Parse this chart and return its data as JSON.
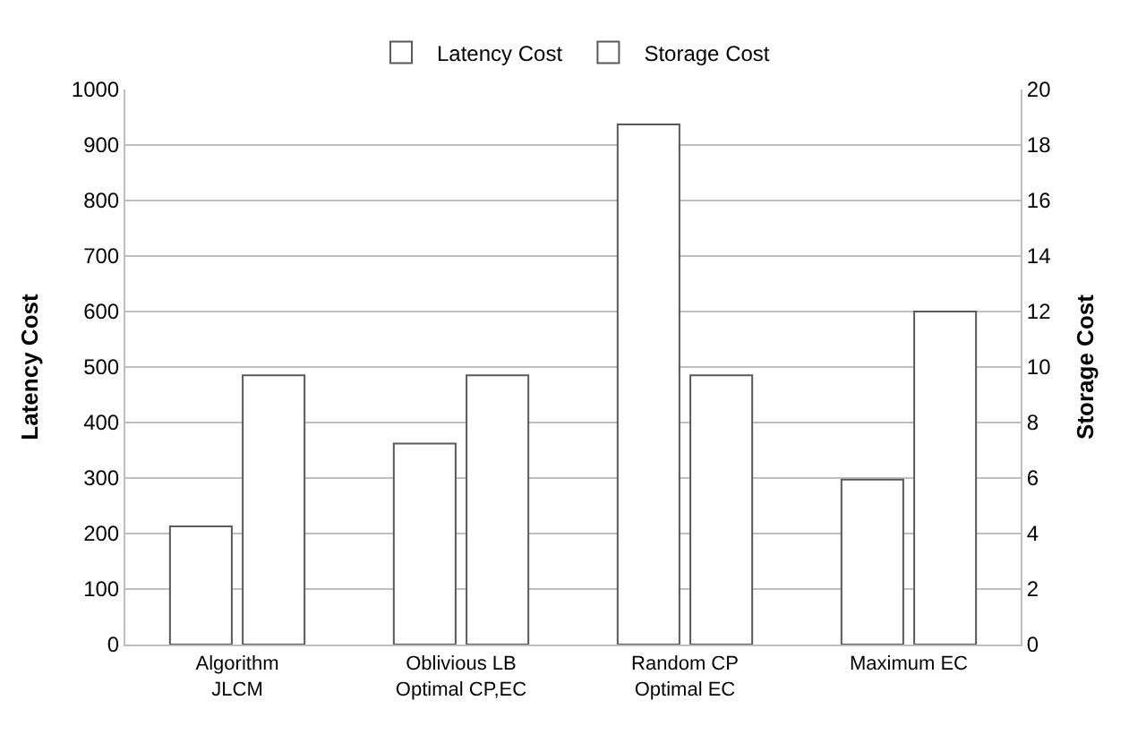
{
  "chart_data": {
    "type": "bar",
    "categories": [
      "Algorithm\nJLCM",
      "Oblivious LB\nOptimal CP,EC",
      "Random CP\nOptimal EC",
      "Maximum EC"
    ],
    "series": [
      {
        "name": "Latency Cost",
        "color": "#ffffff",
        "values": [
          213,
          362,
          937,
          297
        ]
      },
      {
        "name": "Storage Cost",
        "color": "#ffffff",
        "values": [
          9.7,
          9.7,
          9.7,
          12
        ],
        "axis": "y2"
      }
    ],
    "ylabel": "Latency Cost",
    "y2label": "Storage Cost",
    "ylim": [
      0,
      1000
    ],
    "yticks": [
      0,
      100,
      200,
      300,
      400,
      500,
      600,
      700,
      800,
      900,
      1000
    ],
    "y2lim": [
      0,
      20
    ],
    "y2ticks": [
      0,
      2,
      4,
      6,
      8,
      10,
      12,
      14,
      16,
      18,
      20
    ],
    "grid": "y",
    "legend": "top"
  }
}
